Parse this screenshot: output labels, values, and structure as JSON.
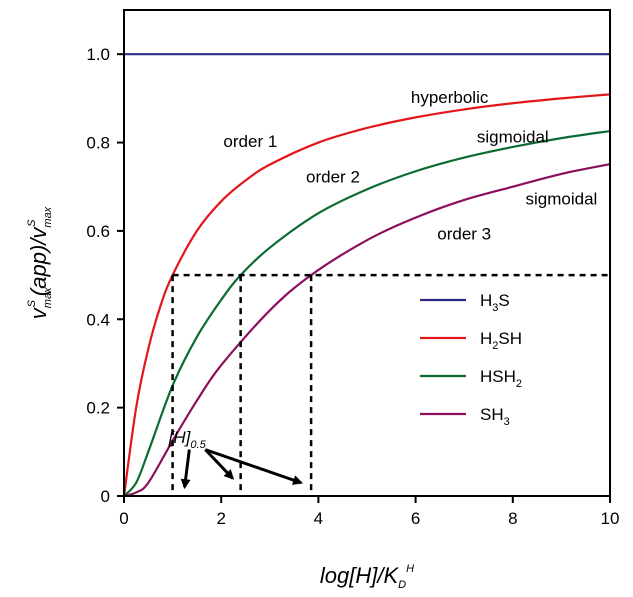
{
  "chart_data": {
    "type": "line",
    "xlabel": {
      "base": "log[H]/K",
      "sub": "D",
      "sup": "H"
    },
    "ylabel": {
      "a": "v",
      "a_sub": "max",
      "a_sup": "S",
      "b": "(app)/v",
      "b_sub": "max",
      "b_sup": "S"
    },
    "xlim": [
      0,
      10
    ],
    "ylim": [
      0,
      1.1
    ],
    "xticks": [
      0,
      2,
      4,
      6,
      8,
      10
    ],
    "yticks": [
      0,
      0.2,
      0.4,
      0.6,
      0.8,
      1.0
    ],
    "ytick_labels": [
      "0",
      "0.2",
      "0.4",
      "0.6",
      "0.8",
      "1.0"
    ],
    "grid": false,
    "legend_position": "bottom-right",
    "series": [
      {
        "name": "H3S",
        "label_main": "H",
        "label_sub": "3",
        "label_rest": "S",
        "color": "#2e2a86",
        "x": [
          0,
          2,
          4,
          6,
          8,
          10
        ],
        "y": [
          1.0,
          1.0,
          1.0,
          1.0,
          1.0,
          1.0
        ]
      },
      {
        "name": "H2SH",
        "label_main": "H",
        "label_sub": "2",
        "label_rest": "SH",
        "color": "#e3161b",
        "x": [
          0,
          0.25,
          0.5,
          0.75,
          1.0,
          1.5,
          2.0,
          2.5,
          3.0,
          4.0,
          5.0,
          6.0,
          7.0,
          8.0,
          9.0,
          10.0
        ],
        "y": [
          0,
          0.2,
          0.333,
          0.43,
          0.5,
          0.6,
          0.667,
          0.714,
          0.75,
          0.8,
          0.833,
          0.857,
          0.875,
          0.889,
          0.9,
          0.909
        ]
      },
      {
        "name": "HSH2",
        "label_main": "HSH",
        "label_sub": "2",
        "label_rest": "",
        "color": "#0c6b33",
        "x": [
          0,
          0.25,
          0.5,
          1.0,
          1.5,
          2.0,
          2.4,
          3.0,
          4.0,
          5.0,
          6.0,
          7.0,
          8.0,
          9.0,
          10.0
        ],
        "y": [
          0,
          0.03,
          0.1,
          0.25,
          0.36,
          0.444,
          0.5,
          0.562,
          0.64,
          0.694,
          0.735,
          0.766,
          0.79,
          0.81,
          0.826
        ]
      },
      {
        "name": "SH3",
        "label_main": "SH",
        "label_sub": "3",
        "label_rest": "",
        "color": "#8c0f5e",
        "x": [
          0,
          0.25,
          0.5,
          1.0,
          1.5,
          2.0,
          3.0,
          3.85,
          5.0,
          6.0,
          7.0,
          8.0,
          9.0,
          10.0
        ],
        "y": [
          0,
          0.008,
          0.03,
          0.125,
          0.216,
          0.296,
          0.42,
          0.5,
          0.579,
          0.63,
          0.67,
          0.7,
          0.729,
          0.751
        ]
      }
    ],
    "reference_lines": {
      "horizontal_y": 0.5,
      "vertical_x": [
        1.0,
        2.4,
        3.85
      ]
    },
    "annotations": [
      {
        "text": "hyperbolic",
        "x": 6.7,
        "y": 0.89
      },
      {
        "text": "order 1",
        "x": 2.6,
        "y": 0.79
      },
      {
        "text": "sigmoidal",
        "x": 8.0,
        "y": 0.8
      },
      {
        "text": "order 2",
        "x": 4.3,
        "y": 0.71
      },
      {
        "text": "sigmoidal",
        "x": 9.0,
        "y": 0.66
      },
      {
        "text": "order 3",
        "x": 7.0,
        "y": 0.58
      },
      {
        "text": "[H]",
        "sub": "0.5",
        "x": 1.3,
        "y": 0.12
      }
    ]
  }
}
